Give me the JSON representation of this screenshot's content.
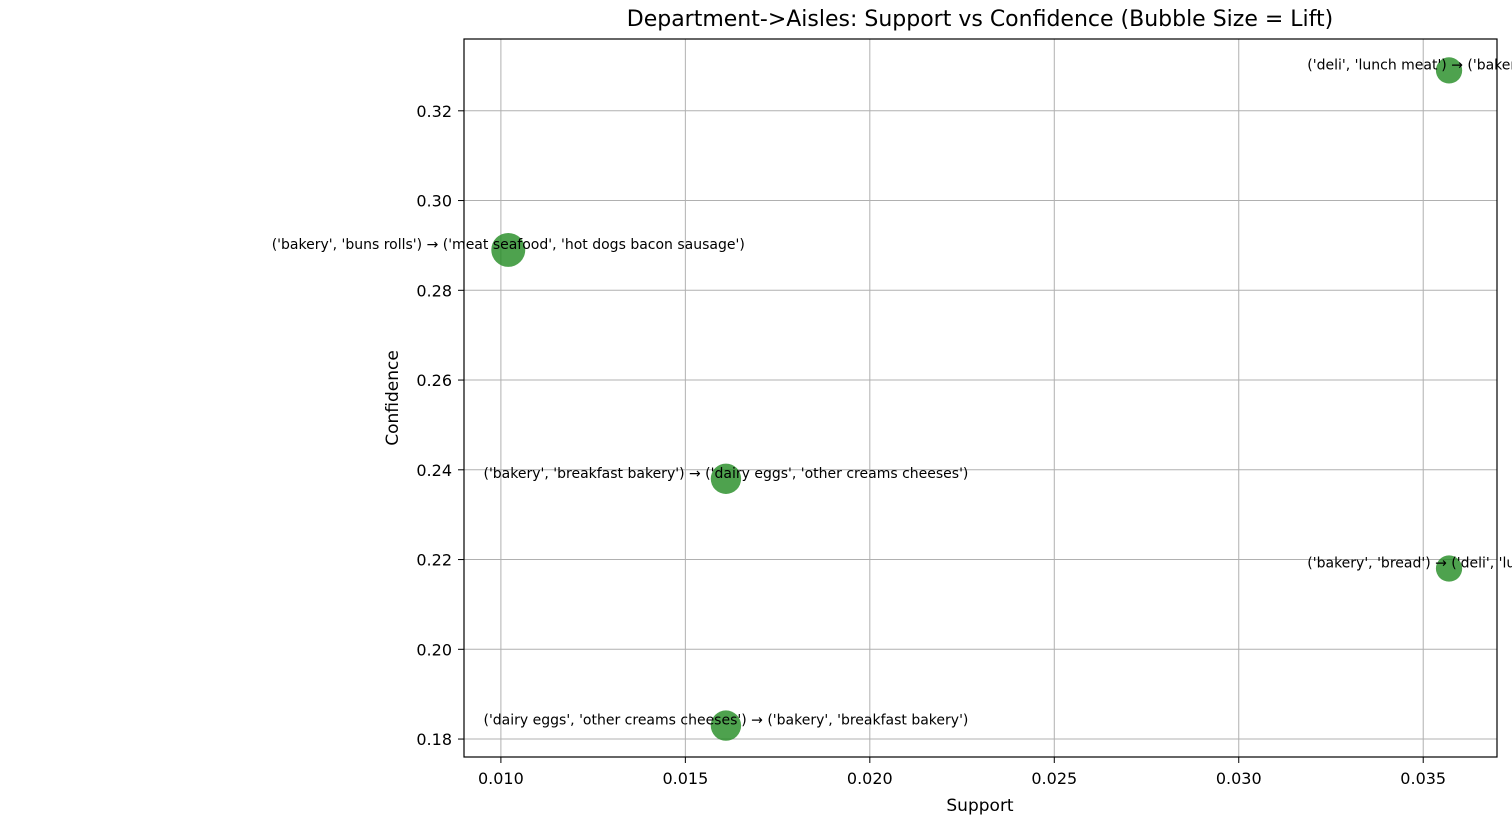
{
  "chart_data": {
    "type": "scatter",
    "title": "Department->Aisles: Support vs Confidence (Bubble Size = Lift)",
    "xlabel": "Support",
    "ylabel": "Confidence",
    "xlim": [
      0.009,
      0.037
    ],
    "ylim": [
      0.176,
      0.336
    ],
    "xticks": [
      "0.010",
      "0.015",
      "0.020",
      "0.025",
      "0.030",
      "0.035"
    ],
    "yticks": [
      "0.18",
      "0.20",
      "0.22",
      "0.24",
      "0.26",
      "0.28",
      "0.30",
      "0.32"
    ],
    "grid": true,
    "marker_color": "#228B22",
    "points": [
      {
        "x": 0.0357,
        "y": 0.329,
        "lift": 1.2,
        "label": "('deli', 'lunch meat') → ('bakery', 'bread')"
      },
      {
        "x": 0.0102,
        "y": 0.289,
        "lift": 2.0,
        "label": "('bakery', 'buns rolls') → ('meat seafood', 'hot dogs bacon sausage')"
      },
      {
        "x": 0.0161,
        "y": 0.238,
        "lift": 1.6,
        "label": "('bakery', 'breakfast bakery') → ('dairy eggs', 'other creams cheeses')"
      },
      {
        "x": 0.0357,
        "y": 0.218,
        "lift": 1.2,
        "label": "('bakery', 'bread') → ('deli', 'lunch meat')"
      },
      {
        "x": 0.0161,
        "y": 0.183,
        "lift": 1.6,
        "label": "('dairy eggs', 'other creams cheeses') → ('bakery', 'breakfast bakery')"
      }
    ]
  }
}
